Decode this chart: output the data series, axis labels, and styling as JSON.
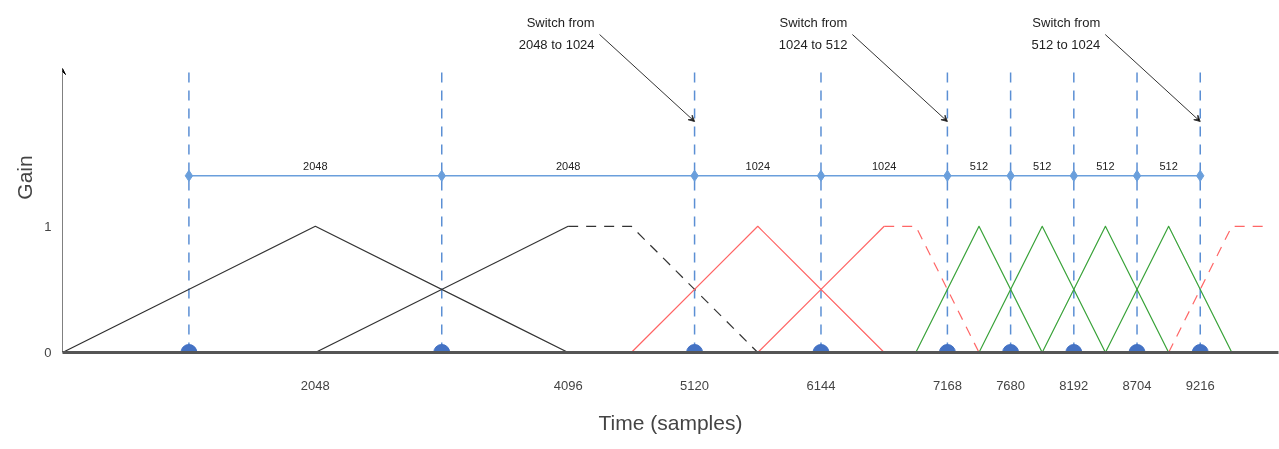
{
  "chart_data": {
    "type": "line",
    "xlabel": "Time (samples)",
    "ylabel": "Gain",
    "xlim": [
      0,
      9850
    ],
    "ylim": [
      0,
      2.25
    ],
    "xticks": [
      2048,
      4096,
      5120,
      6144,
      7168,
      7680,
      8192,
      8704,
      9216
    ],
    "yticks": [
      0,
      1
    ],
    "grid": false,
    "series": [
      {
        "color": "#333333",
        "x": [
          0,
          2048,
          4096
        ],
        "values": [
          0,
          1,
          0
        ]
      },
      {
        "color": "#333333",
        "x": [
          2048,
          4096
        ],
        "values": [
          0,
          1
        ]
      },
      {
        "color": "#333333",
        "line_style": "dashed",
        "x": [
          4096,
          4608,
          5632
        ],
        "values": [
          1,
          1,
          0
        ]
      },
      {
        "color": "#ff6666",
        "x": [
          4608,
          5632,
          6656
        ],
        "values": [
          0,
          1,
          0
        ]
      },
      {
        "color": "#ff6666",
        "x": [
          5632,
          6656
        ],
        "values": [
          0,
          1
        ]
      },
      {
        "color": "#ff6666",
        "line_style": "dashed",
        "x": [
          6656,
          6912,
          7424
        ],
        "values": [
          1,
          1,
          0
        ]
      },
      {
        "color": "#3aa33a",
        "x": [
          6912,
          7424,
          7936
        ],
        "values": [
          0,
          1,
          0
        ]
      },
      {
        "color": "#3aa33a",
        "x": [
          7424,
          7936,
          8448
        ],
        "values": [
          0,
          1,
          0
        ]
      },
      {
        "color": "#3aa33a",
        "x": [
          7936,
          8448,
          8960
        ],
        "values": [
          0,
          1,
          0
        ]
      },
      {
        "color": "#3aa33a",
        "x": [
          8448,
          8960,
          9472
        ],
        "values": [
          0,
          1,
          0
        ]
      },
      {
        "color": "#ff6666",
        "line_style": "dashed",
        "x": [
          8960,
          9472,
          9728
        ],
        "values": [
          0,
          1,
          1
        ]
      },
      {
        "color": "#6a9fdc",
        "marker": "diamond",
        "x": [
          1024,
          3072,
          5120,
          6144,
          7168,
          7680,
          8192,
          8704,
          9216
        ],
        "values": [
          1.4,
          1.4,
          1.4,
          1.4,
          1.4,
          1.4,
          1.4,
          1.4,
          1.4
        ]
      },
      {
        "type": "scatter",
        "color": "#4472c4",
        "marker": "circle",
        "x": [
          1024,
          3072,
          5120,
          6144,
          7168,
          7680,
          8192,
          8704,
          9216
        ],
        "values": [
          0,
          0,
          0,
          0,
          0,
          0,
          0,
          0,
          0
        ]
      }
    ],
    "ref_lines": [
      {
        "axis": "x",
        "value": 1024,
        "color": "#5b8fd4",
        "line_style": "dashed"
      },
      {
        "axis": "x",
        "value": 3072,
        "color": "#5b8fd4",
        "line_style": "dashed"
      },
      {
        "axis": "x",
        "value": 5120,
        "color": "#5b8fd4",
        "line_style": "dashed"
      },
      {
        "axis": "x",
        "value": 6144,
        "color": "#5b8fd4",
        "line_style": "dashed"
      },
      {
        "axis": "x",
        "value": 7168,
        "color": "#5b8fd4",
        "line_style": "dashed"
      },
      {
        "axis": "x",
        "value": 7680,
        "color": "#5b8fd4",
        "line_style": "dashed"
      },
      {
        "axis": "x",
        "value": 8192,
        "color": "#5b8fd4",
        "line_style": "dashed"
      },
      {
        "axis": "x",
        "value": 8704,
        "color": "#5b8fd4",
        "line_style": "dashed"
      },
      {
        "axis": "x",
        "value": 9216,
        "color": "#5b8fd4",
        "line_style": "dashed"
      }
    ],
    "annotations": [
      {
        "text": "2048",
        "x": 2048,
        "y": 1.4
      },
      {
        "text": "2048",
        "x": 4096,
        "y": 1.4
      },
      {
        "text": "1024",
        "x": 5632,
        "y": 1.4
      },
      {
        "text": "1024",
        "x": 6656,
        "y": 1.4
      },
      {
        "text": "512",
        "x": 7424,
        "y": 1.4
      },
      {
        "text": "512",
        "x": 7936,
        "y": 1.4
      },
      {
        "text": "512",
        "x": 8448,
        "y": 1.4
      },
      {
        "text": "512",
        "x": 8960,
        "y": 1.4
      },
      {
        "text": "Switch from\n2048 to 1024",
        "x": 5120,
        "y": 1.83
      },
      {
        "text": "Switch from\n1024 to 512",
        "x": 7168,
        "y": 1.83
      },
      {
        "text": "Switch from\n512 to 1024",
        "x": 9216,
        "y": 1.83
      }
    ]
  }
}
